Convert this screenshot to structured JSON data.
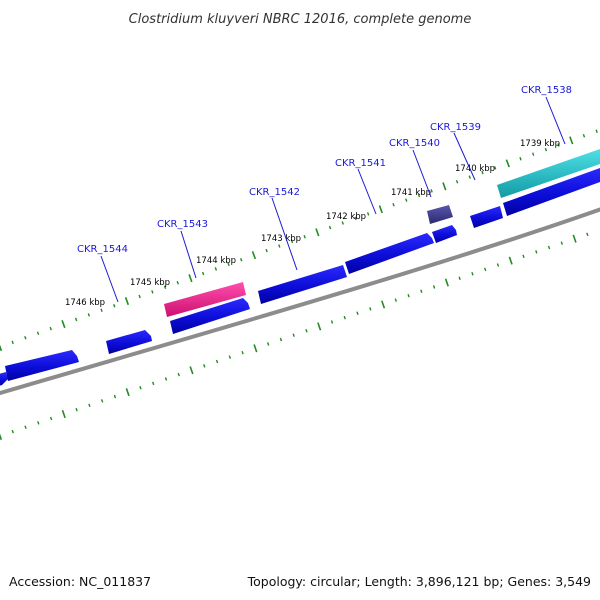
{
  "header": {
    "title": "Clostridium kluyveri NBRC 12016, complete genome"
  },
  "footer": {
    "accession": "Accession: NC_011837",
    "summary": "Topology: circular; Length: 3,896,121 bp; Genes: 3,549"
  },
  "colors": {
    "cds": "#1010e0",
    "trna": "#ee1b8c",
    "rrna": "#22c0c8",
    "other": "#3d3a8a",
    "backbone": "#8c8c8c",
    "tick": "#228b22",
    "label": "#1a1ad6"
  },
  "scale_labels": [
    {
      "id": "1746",
      "text": "1746 kbp"
    },
    {
      "id": "1745",
      "text": "1745 kbp"
    },
    {
      "id": "1744",
      "text": "1744 kbp"
    },
    {
      "id": "1743",
      "text": "1743 kbp"
    },
    {
      "id": "1742",
      "text": "1742 kbp"
    },
    {
      "id": "1741",
      "text": "1741 kbp"
    },
    {
      "id": "1740",
      "text": "1740 kbp"
    },
    {
      "id": "1739",
      "text": "1739 kbp"
    }
  ],
  "gene_labels": [
    {
      "id": "1544",
      "text": "CKR_1544"
    },
    {
      "id": "1543",
      "text": "CKR_1543"
    },
    {
      "id": "1542",
      "text": "CKR_1542"
    },
    {
      "id": "1541",
      "text": "CKR_1541"
    },
    {
      "id": "1540",
      "text": "CKR_1540"
    },
    {
      "id": "1539",
      "text": "CKR_1539"
    },
    {
      "id": "1538",
      "text": "CKR_1538"
    }
  ]
}
